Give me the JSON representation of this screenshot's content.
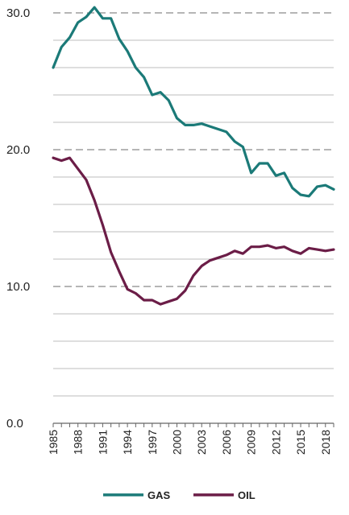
{
  "chart_data": {
    "type": "line",
    "title": "",
    "xlabel": "",
    "ylabel": "",
    "xlim": [
      1985,
      2019
    ],
    "ylim": [
      0,
      30
    ],
    "y_ticks": [
      0,
      10,
      20,
      30
    ],
    "y_tick_labels": [
      "0.0",
      "10.0",
      "20.0",
      "30.0"
    ],
    "x_tick_labels": [
      "1985",
      "1988",
      "1991",
      "1994",
      "1997",
      "2000",
      "2003",
      "2006",
      "2009",
      "2012",
      "2015",
      "2018"
    ],
    "grid": true,
    "legend_position": "bottom",
    "x": [
      1985,
      1986,
      1987,
      1988,
      1989,
      1990,
      1991,
      1992,
      1993,
      1994,
      1995,
      1996,
      1997,
      1998,
      1999,
      2000,
      2001,
      2002,
      2003,
      2004,
      2005,
      2006,
      2007,
      2008,
      2009,
      2010,
      2011,
      2012,
      2013,
      2014,
      2015,
      2016,
      2017,
      2018,
      2019
    ],
    "series": [
      {
        "name": "GAS",
        "color": "#1b7a78",
        "values": [
          26.0,
          27.5,
          28.2,
          29.3,
          29.7,
          30.4,
          29.6,
          29.6,
          28.1,
          27.2,
          26.0,
          25.3,
          24.0,
          24.2,
          23.6,
          22.3,
          21.8,
          21.8,
          21.9,
          21.7,
          21.5,
          21.3,
          20.6,
          20.2,
          18.3,
          19.0,
          19.0,
          18.1,
          18.3,
          17.2,
          16.7,
          16.6,
          17.3,
          17.4,
          17.1
        ]
      },
      {
        "name": "OIL",
        "color": "#6b1d47",
        "values": [
          19.4,
          19.2,
          19.4,
          18.6,
          17.8,
          16.3,
          14.5,
          12.5,
          11.1,
          9.8,
          9.5,
          9.0,
          9.0,
          8.7,
          8.9,
          9.1,
          9.7,
          10.8,
          11.5,
          11.9,
          12.1,
          12.3,
          12.6,
          12.4,
          12.9,
          12.9,
          13.0,
          12.8,
          12.9,
          12.6,
          12.4,
          12.8,
          12.7,
          12.6,
          12.7
        ]
      }
    ]
  }
}
